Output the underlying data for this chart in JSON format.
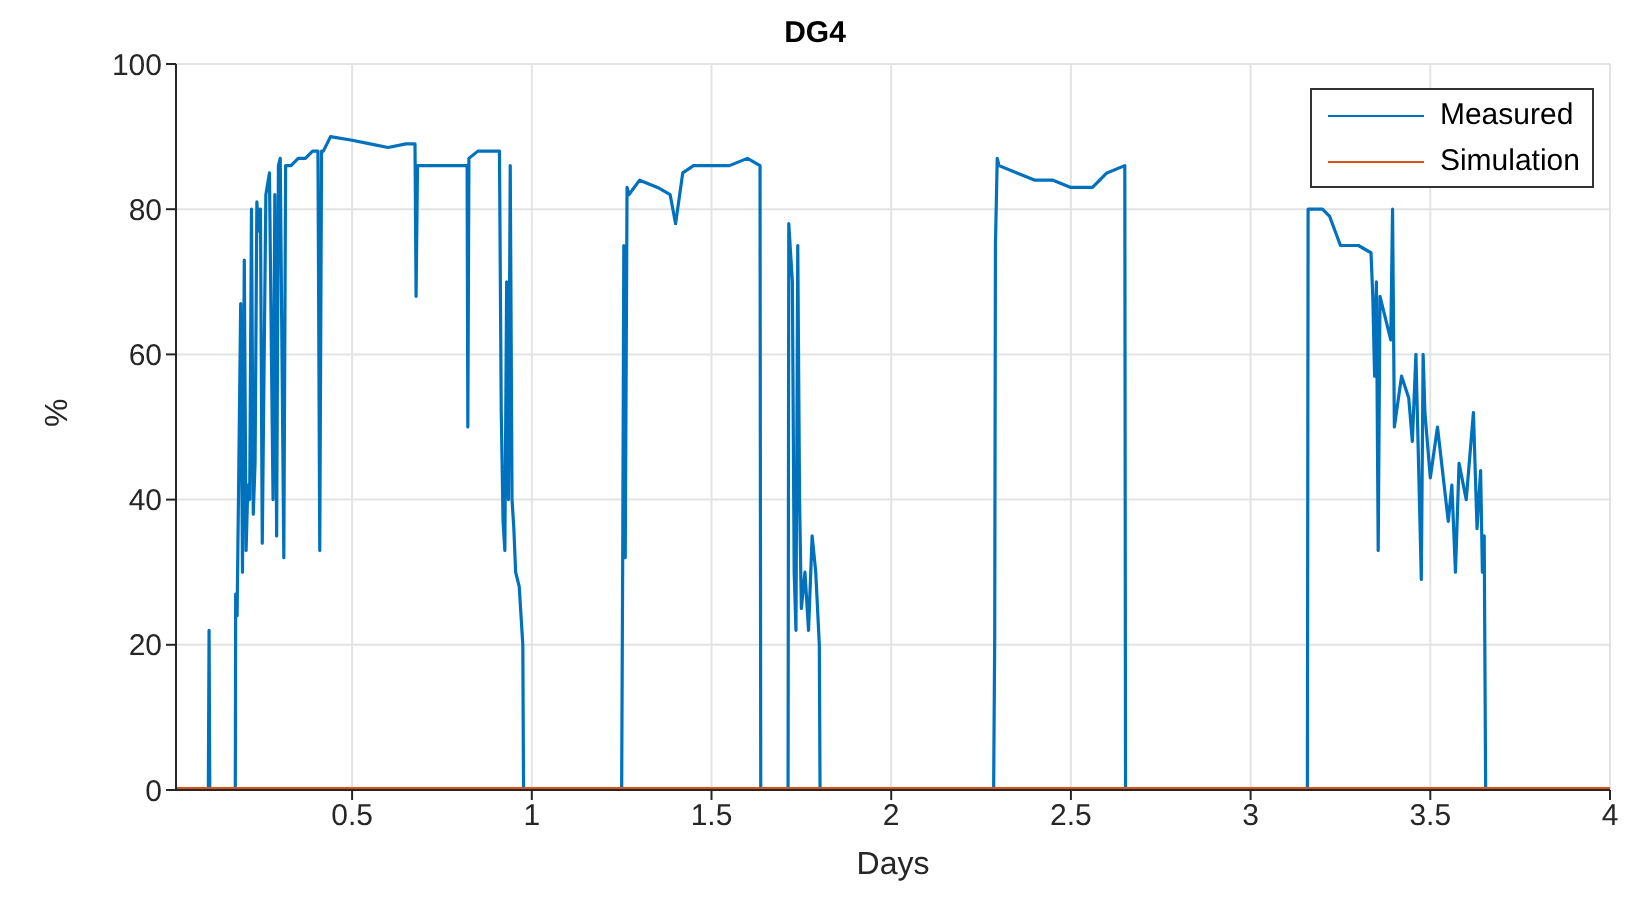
{
  "chart_data": {
    "type": "line",
    "title": "DG4",
    "xlabel": "Days",
    "ylabel": "%",
    "xlim": [
      0.01,
      4
    ],
    "ylim": [
      0,
      100
    ],
    "xticks": [
      0.5,
      1,
      1.5,
      2,
      2.5,
      3,
      3.5,
      4
    ],
    "yticks": [
      0,
      20,
      40,
      60,
      80,
      100
    ],
    "grid": true,
    "legend": "top right",
    "marker": "none",
    "line_style": "solid",
    "series": [
      {
        "name": "Measured",
        "color": "#0072bd",
        "x": [
          0.01,
          0.1,
          0.102,
          0.104,
          0.175,
          0.176,
          0.18,
          0.19,
          0.195,
          0.2,
          0.205,
          0.21,
          0.215,
          0.22,
          0.225,
          0.23,
          0.235,
          0.24,
          0.245,
          0.25,
          0.26,
          0.27,
          0.28,
          0.285,
          0.29,
          0.295,
          0.3,
          0.31,
          0.315,
          0.33,
          0.35,
          0.37,
          0.39,
          0.405,
          0.41,
          0.415,
          0.42,
          0.44,
          0.5,
          0.55,
          0.6,
          0.65,
          0.675,
          0.678,
          0.682,
          0.7,
          0.75,
          0.8,
          0.82,
          0.822,
          0.825,
          0.85,
          0.9,
          0.91,
          0.915,
          0.92,
          0.925,
          0.93,
          0.935,
          0.94,
          0.945,
          0.95,
          0.955,
          0.965,
          0.975,
          0.977,
          1.25,
          1.253,
          1.256,
          1.26,
          1.265,
          1.27,
          1.3,
          1.35,
          1.385,
          1.4,
          1.42,
          1.45,
          1.5,
          1.55,
          1.6,
          1.635,
          1.637,
          1.713,
          1.715,
          1.72,
          1.725,
          1.73,
          1.735,
          1.74,
          1.745,
          1.75,
          1.76,
          1.77,
          1.78,
          1.79,
          1.8,
          1.802,
          2.285,
          2.288,
          2.29,
          2.295,
          2.3,
          2.35,
          2.4,
          2.45,
          2.5,
          2.56,
          2.6,
          2.65,
          2.652,
          3.158,
          3.16,
          3.2,
          3.22,
          3.25,
          3.3,
          3.335,
          3.34,
          3.345,
          3.35,
          3.355,
          3.36,
          3.39,
          3.395,
          3.4,
          3.42,
          3.44,
          3.45,
          3.46,
          3.475,
          3.48,
          3.485,
          3.5,
          3.52,
          3.55,
          3.56,
          3.57,
          3.58,
          3.6,
          3.62,
          3.63,
          3.64,
          3.645,
          3.65,
          3.654,
          3.66,
          4
        ],
        "values": [
          0,
          0,
          22,
          0,
          0,
          27,
          24,
          67,
          30,
          73,
          33,
          42,
          40,
          80,
          38,
          45,
          81,
          77,
          80,
          34,
          82,
          85,
          40,
          82,
          35,
          86,
          87,
          32,
          86,
          86,
          87,
          87,
          88,
          88,
          33,
          88,
          88,
          90,
          89.5,
          89,
          88.5,
          89,
          89,
          68,
          86,
          86,
          86,
          86,
          86,
          50,
          87,
          88,
          88,
          88,
          52,
          37,
          33,
          70,
          40,
          86,
          40,
          36,
          30,
          28,
          20,
          0,
          0,
          33,
          75,
          32,
          83,
          82,
          84,
          83,
          82,
          78,
          85,
          86,
          86,
          86,
          87,
          86,
          0,
          0,
          78,
          74,
          70,
          30,
          22,
          75,
          40,
          25,
          30,
          22,
          35,
          30,
          20,
          0,
          0,
          21,
          75,
          87,
          86,
          85,
          84,
          84,
          83,
          83,
          85,
          86,
          0,
          0,
          80,
          80,
          79,
          75,
          75,
          74,
          68,
          57,
          70,
          33,
          68,
          62,
          80,
          50,
          57,
          54,
          48,
          60,
          29,
          60,
          52,
          43,
          50,
          37,
          42,
          30,
          45,
          40,
          52,
          36,
          44,
          30,
          35,
          0,
          0,
          0
        ]
      },
      {
        "name": "Simulation",
        "color": "#d95319",
        "x": [
          0.01,
          4
        ],
        "values": [
          0,
          0
        ]
      }
    ]
  }
}
